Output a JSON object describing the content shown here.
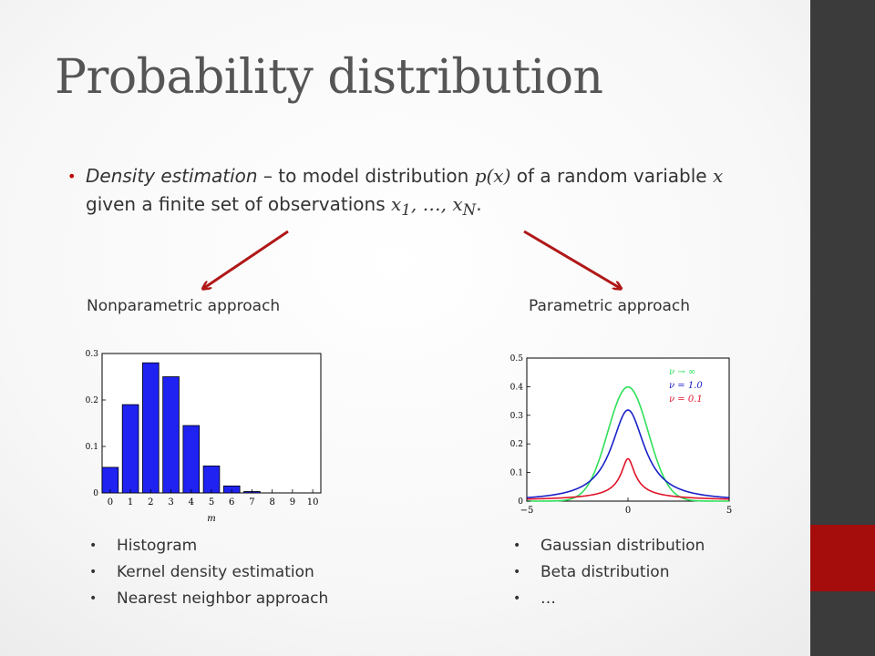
{
  "slide": {
    "title": "Probability distribution",
    "bullet": {
      "term": "Density estimation",
      "part1": " – to model distribution ",
      "px": "p(x)",
      "part2": " of a random variable ",
      "x": "x",
      "part3": " given a finite set of observations ",
      "x1": "x",
      "x1_sub": "1",
      "ellipsis": ", …, ",
      "xN": "x",
      "xN_sub": "N",
      "period": "."
    },
    "left": {
      "heading": "Nonparametric approach",
      "items": [
        "Histogram",
        "Kernel density estimation",
        "Nearest neighbor approach"
      ]
    },
    "right": {
      "heading": "Parametric approach",
      "items": [
        "Gaussian distribution",
        "Beta distribution",
        "…"
      ]
    },
    "colors": {
      "accent": "#a50c0c",
      "sidebar": "#3b3b3b",
      "arrow": "#b01818"
    }
  },
  "chart_data": [
    {
      "type": "bar",
      "x": [
        0,
        1,
        2,
        3,
        4,
        5,
        6,
        7,
        8,
        9,
        10
      ],
      "values": [
        0.055,
        0.19,
        0.28,
        0.25,
        0.145,
        0.058,
        0.015,
        0.003,
        0,
        0,
        0
      ],
      "xlabel": "m",
      "ylabel": "",
      "xticks": [
        "0",
        "1",
        "2",
        "3",
        "4",
        "5",
        "6",
        "7",
        "8",
        "9",
        "10"
      ],
      "yticks": [
        "0",
        "0.1",
        "0.2",
        "0.3"
      ],
      "ylim": [
        0,
        0.3
      ],
      "color": "#1f22f0"
    },
    {
      "type": "line",
      "xlim": [
        -5,
        5
      ],
      "ylim": [
        0,
        0.5
      ],
      "xticks": [
        "−5",
        "0",
        "5"
      ],
      "yticks": [
        "0",
        "0.1",
        "0.2",
        "0.3",
        "0.4",
        "0.5"
      ],
      "series": [
        {
          "name": "ν → ∞",
          "nu": "inf",
          "color": "#2ee05a"
        },
        {
          "name": "ν = 1.0",
          "nu": 1.0,
          "color": "#1a22c8"
        },
        {
          "name": "ν = 0.1",
          "nu": 0.1,
          "color": "#e0142a"
        }
      ],
      "legend": "top-right"
    }
  ]
}
